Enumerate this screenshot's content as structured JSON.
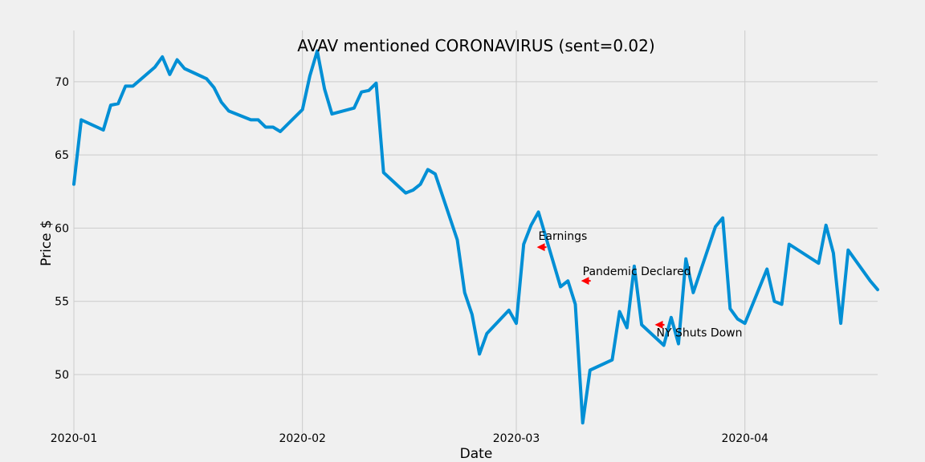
{
  "chart_data": {
    "type": "line",
    "title": "AVAV mentioned CORONAVIRUS (sent=0.02)",
    "xlabel": "Date",
    "ylabel": "Price $",
    "xlim": [
      "2020-01-01",
      "2020-04-19"
    ],
    "ylim": [
      46.0,
      73.5
    ],
    "x_ticks": [
      "2020-01-01",
      "2020-02-01",
      "2020-03-01",
      "2020-04-01"
    ],
    "x_tick_labels": [
      "2020-01",
      "2020-02",
      "2020-03",
      "2020-04"
    ],
    "y_ticks": [
      50,
      55,
      60,
      65,
      70
    ],
    "y_tick_labels": [
      "50",
      "55",
      "60",
      "65",
      "70"
    ],
    "grid": true,
    "line_color": "#008fd5",
    "annotation_color": "#ff0000",
    "series": [
      {
        "x": [
          "2020-01-01",
          "2020-01-02",
          "2020-01-05",
          "2020-01-06",
          "2020-01-07",
          "2020-01-08",
          "2020-01-09",
          "2020-01-12",
          "2020-01-13",
          "2020-01-14",
          "2020-01-15",
          "2020-01-16",
          "2020-01-19",
          "2020-01-20",
          "2020-01-21",
          "2020-01-22",
          "2020-01-25",
          "2020-01-26",
          "2020-01-27",
          "2020-01-28",
          "2020-01-29",
          "2020-02-01",
          "2020-02-02",
          "2020-02-03",
          "2020-02-04",
          "2020-02-05",
          "2020-02-08",
          "2020-02-09",
          "2020-02-10",
          "2020-02-11",
          "2020-02-12",
          "2020-02-15",
          "2020-02-16",
          "2020-02-17",
          "2020-02-18",
          "2020-02-19",
          "2020-02-22",
          "2020-02-23",
          "2020-02-24",
          "2020-02-25",
          "2020-02-26",
          "2020-02-29",
          "2020-03-01",
          "2020-03-02",
          "2020-03-03",
          "2020-03-04",
          "2020-03-07",
          "2020-03-08",
          "2020-03-09",
          "2020-03-10",
          "2020-03-11",
          "2020-03-14",
          "2020-03-15",
          "2020-03-16",
          "2020-03-17",
          "2020-03-18",
          "2020-03-21",
          "2020-03-22",
          "2020-03-23",
          "2020-03-24",
          "2020-03-25",
          "2020-03-28",
          "2020-03-29",
          "2020-03-30",
          "2020-03-31",
          "2020-04-01",
          "2020-04-04",
          "2020-04-05",
          "2020-04-06",
          "2020-04-07",
          "2020-04-11",
          "2020-04-12",
          "2020-04-13",
          "2020-04-14",
          "2020-04-15",
          "2020-04-18",
          "2020-04-19"
        ],
        "y": [
          63.0,
          67.4,
          66.7,
          68.4,
          68.5,
          69.7,
          69.7,
          71.0,
          71.7,
          70.5,
          71.5,
          70.9,
          70.2,
          69.6,
          68.6,
          68.0,
          67.4,
          67.4,
          66.9,
          66.9,
          66.6,
          68.1,
          70.4,
          72.1,
          69.5,
          67.8,
          68.2,
          69.3,
          69.4,
          69.9,
          63.8,
          62.4,
          62.6,
          63.0,
          64.0,
          63.7,
          59.2,
          55.6,
          54.1,
          51.4,
          52.8,
          54.4,
          53.5,
          58.9,
          60.2,
          61.1,
          56.0,
          56.4,
          54.8,
          46.7,
          50.3,
          51.0,
          54.3,
          53.2,
          57.4,
          53.4,
          52.0,
          53.9,
          52.1,
          57.9,
          55.6,
          60.1,
          60.7,
          54.5,
          53.8,
          53.5,
          57.2,
          55.0,
          54.8,
          58.9,
          57.6,
          60.2,
          58.3,
          53.5,
          58.5,
          56.4,
          55.8
        ]
      }
    ],
    "annotations": [
      {
        "text": "Earnings",
        "x": "2020-03-04",
        "y": 58.7,
        "text_x": "2020-03-04",
        "text_y": 59.2
      },
      {
        "text": "Pandemic Declared",
        "x": "2020-03-10",
        "y": 56.4,
        "text_x": "2020-03-10",
        "text_y": 56.8
      },
      {
        "text": "NY Shuts Down",
        "x": "2020-03-20",
        "y": 53.4,
        "text_x": "2020-03-20",
        "text_y": 52.6
      }
    ]
  }
}
